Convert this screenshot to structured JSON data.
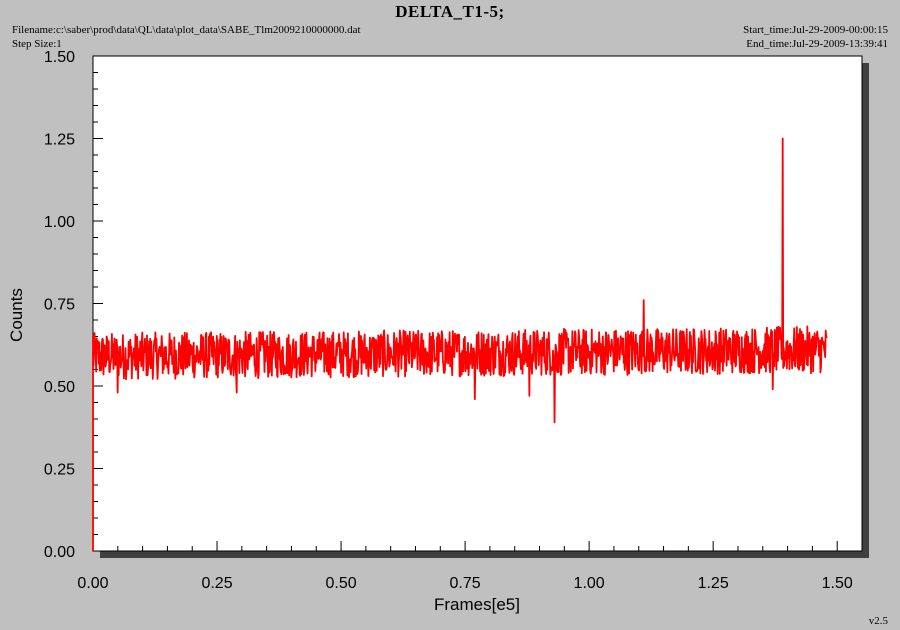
{
  "header": {
    "title": "DELTA_T1-5;",
    "filename": "Filename:c:\\saber\\prod\\data\\QL\\data\\plot_data\\SABE_Tlm2009210000000.dat",
    "step_size": "Step Size:1",
    "start_time": "Start_time:Jul-29-2009-00:00:15",
    "end_time": "End_time:Jul-29-2009-13:39:41"
  },
  "version": "v2.5",
  "colors": {
    "series": "#ff0000",
    "background": "#c0c0c0",
    "plot_bg": "#ffffff",
    "shadow": "#404040"
  },
  "chart_data": {
    "type": "line",
    "title": "DELTA_T1-5;",
    "xlabel": "Frames[e5]",
    "ylabel": "Counts",
    "xlim": [
      0,
      1.55
    ],
    "ylim": [
      0,
      1.5
    ],
    "xticks": [
      "0.00",
      "0.25",
      "0.50",
      "0.75",
      "1.00",
      "1.25",
      "1.50"
    ],
    "yticks": [
      "0.00",
      "0.25",
      "0.50",
      "0.75",
      "1.00",
      "1.25",
      "1.50"
    ],
    "grid": false,
    "series": [
      {
        "color": "#ff0000",
        "x_range": [
          0,
          1.48
        ],
        "baseline_start": 0.59,
        "baseline_end": 0.61,
        "band_low": 0.52,
        "band_high": 0.67,
        "initial_jump": [
          0.0,
          0.65
        ],
        "spikes": [
          {
            "x": 1.39,
            "y": 1.25
          },
          {
            "x": 1.11,
            "y": 0.76
          },
          {
            "x": 0.93,
            "y": 0.39
          },
          {
            "x": 0.77,
            "y": 0.46
          },
          {
            "x": 0.88,
            "y": 0.47
          },
          {
            "x": 1.37,
            "y": 0.49
          },
          {
            "x": 0.29,
            "y": 0.48
          },
          {
            "x": 0.05,
            "y": 0.48
          }
        ]
      }
    ]
  }
}
